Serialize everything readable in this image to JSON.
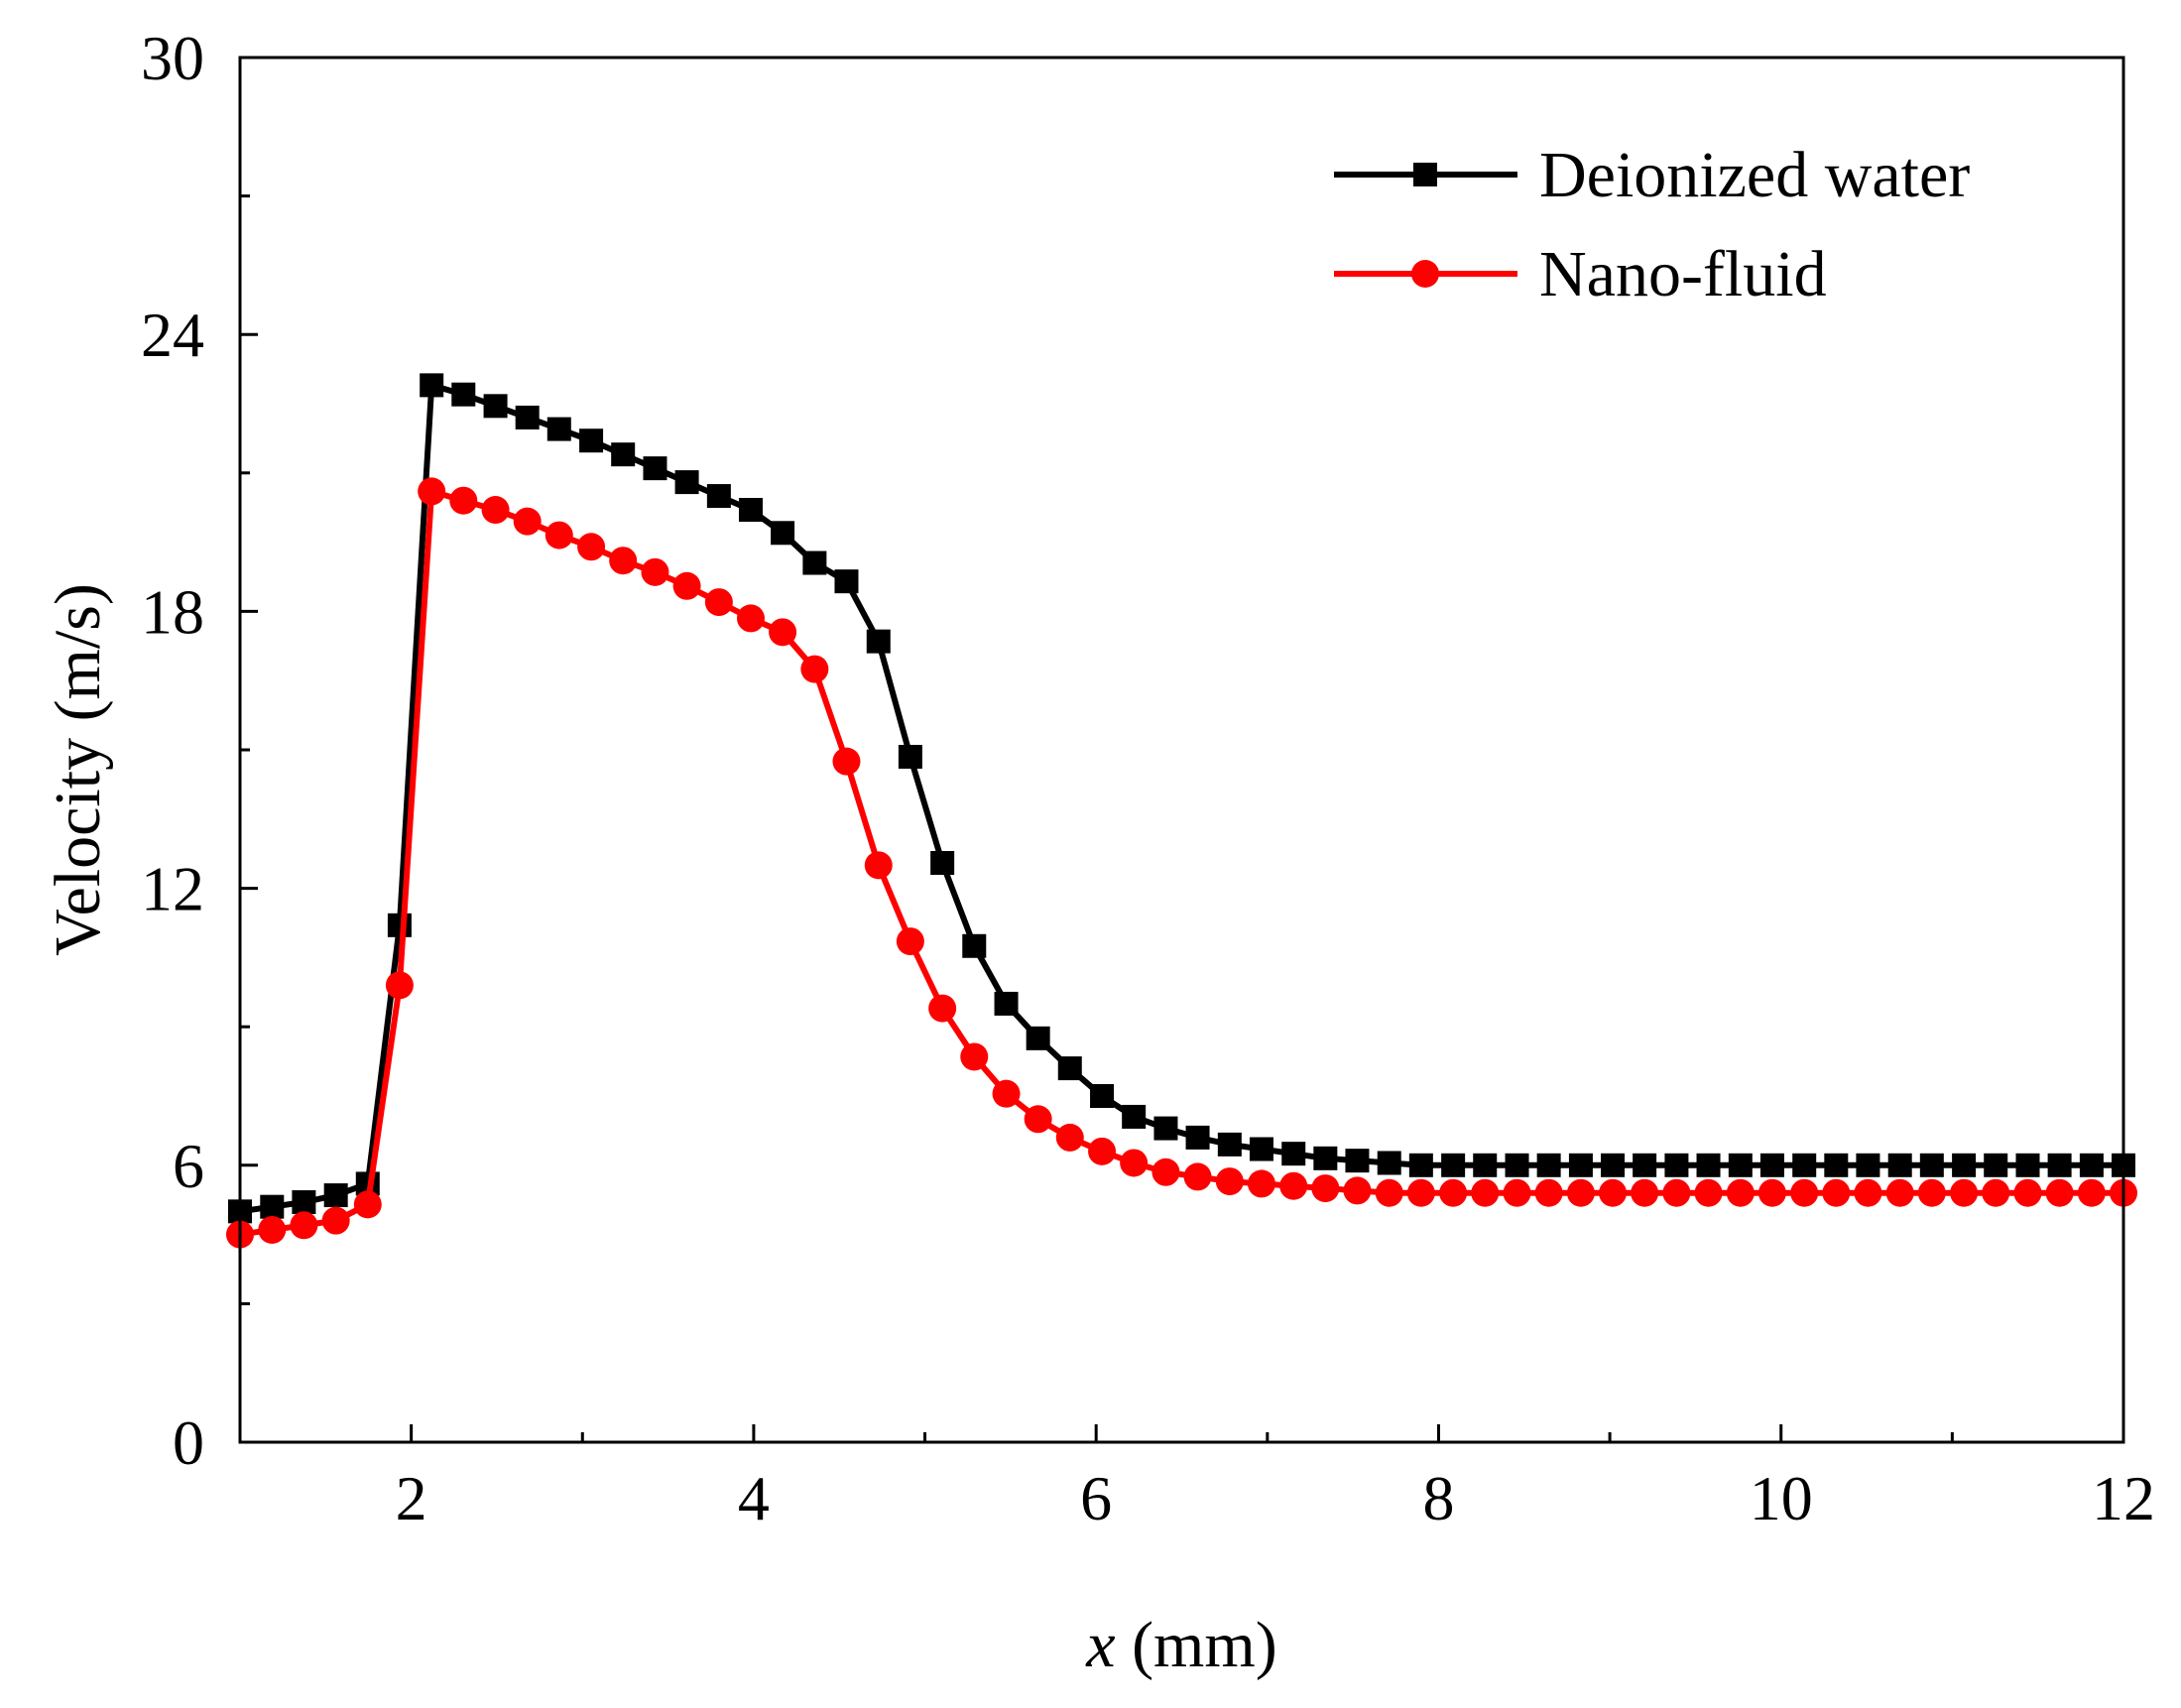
{
  "chart_data": {
    "type": "line",
    "title": "",
    "xlabel_var": "x",
    "xlabel_unit": " (mm)",
    "ylabel": "Velocity  (m/s)",
    "xlim": [
      1,
      12
    ],
    "ylim": [
      0,
      30
    ],
    "x_ticks": [
      2,
      4,
      6,
      8,
      10,
      12
    ],
    "x_tick_labels": [
      "2",
      "4",
      "6",
      "8",
      "10",
      "12"
    ],
    "x_minor_ticks": [
      3,
      5,
      7,
      9,
      11
    ],
    "y_ticks": [
      0,
      6,
      12,
      18,
      24,
      30
    ],
    "y_tick_labels": [
      "0",
      "6",
      "12",
      "18",
      "24",
      "30"
    ],
    "y_minor_ticks": [
      3,
      9,
      15,
      21,
      27
    ],
    "grid": false,
    "legend_position": "top-right",
    "series": [
      {
        "name": "Deionized water",
        "color": "#000000",
        "marker": "square",
        "x": [
          1.0,
          1.187,
          1.373,
          1.56,
          1.746,
          1.932,
          2.119,
          2.305,
          2.492,
          2.678,
          2.864,
          3.051,
          3.237,
          3.424,
          3.61,
          3.797,
          3.983,
          4.169,
          4.356,
          4.542,
          4.729,
          4.915,
          5.102,
          5.288,
          5.475,
          5.661,
          5.847,
          6.034,
          6.22,
          6.407,
          6.593,
          6.78,
          6.966,
          7.153,
          7.339,
          7.525,
          7.712,
          7.898,
          8.085,
          8.271,
          8.458,
          8.644,
          8.831,
          9.017,
          9.203,
          9.39,
          9.576,
          9.763,
          9.949,
          10.136,
          10.322,
          10.508,
          10.695,
          10.881,
          11.068,
          11.254,
          11.441,
          11.627,
          11.814,
          12.0
        ],
        "y": [
          5.0,
          5.1,
          5.2,
          5.35,
          5.6,
          11.2,
          22.9,
          22.7,
          22.45,
          22.2,
          21.95,
          21.7,
          21.4,
          21.1,
          20.8,
          20.5,
          20.2,
          19.7,
          19.05,
          18.65,
          17.35,
          14.85,
          12.55,
          10.75,
          9.5,
          8.75,
          8.1,
          7.5,
          7.05,
          6.8,
          6.6,
          6.45,
          6.35,
          6.25,
          6.15,
          6.1,
          6.05,
          6.0,
          6.0,
          6.0,
          6.0,
          6.0,
          6.0,
          6.0,
          6.0,
          6.0,
          6.0,
          6.0,
          6.0,
          6.0,
          6.0,
          6.0,
          6.0,
          6.0,
          6.0,
          6.0,
          6.0,
          6.0,
          6.0,
          6.0
        ]
      },
      {
        "name": "Nano-fluid",
        "color": "#ff0000",
        "marker": "circle",
        "x": [
          1.0,
          1.187,
          1.373,
          1.56,
          1.746,
          1.932,
          2.119,
          2.305,
          2.492,
          2.678,
          2.864,
          3.051,
          3.237,
          3.424,
          3.61,
          3.797,
          3.983,
          4.169,
          4.356,
          4.542,
          4.729,
          4.915,
          5.102,
          5.288,
          5.475,
          5.661,
          5.847,
          6.034,
          6.22,
          6.407,
          6.593,
          6.78,
          6.966,
          7.153,
          7.339,
          7.525,
          7.712,
          7.898,
          8.085,
          8.271,
          8.458,
          8.644,
          8.831,
          9.017,
          9.203,
          9.39,
          9.576,
          9.763,
          9.949,
          10.136,
          10.322,
          10.508,
          10.695,
          10.881,
          11.068,
          11.254,
          11.441,
          11.627,
          11.814,
          12.0
        ],
        "y": [
          4.5,
          4.6,
          4.7,
          4.8,
          5.15,
          9.9,
          20.6,
          20.4,
          20.2,
          19.95,
          19.65,
          19.4,
          19.1,
          18.85,
          18.55,
          18.2,
          17.85,
          17.55,
          16.75,
          14.75,
          12.5,
          10.85,
          9.4,
          8.35,
          7.55,
          7.0,
          6.6,
          6.3,
          6.05,
          5.85,
          5.75,
          5.65,
          5.6,
          5.55,
          5.5,
          5.45,
          5.4,
          5.4,
          5.4,
          5.4,
          5.4,
          5.4,
          5.4,
          5.4,
          5.4,
          5.4,
          5.4,
          5.4,
          5.4,
          5.4,
          5.4,
          5.4,
          5.4,
          5.4,
          5.4,
          5.4,
          5.4,
          5.4,
          5.4,
          5.4
        ]
      }
    ]
  }
}
